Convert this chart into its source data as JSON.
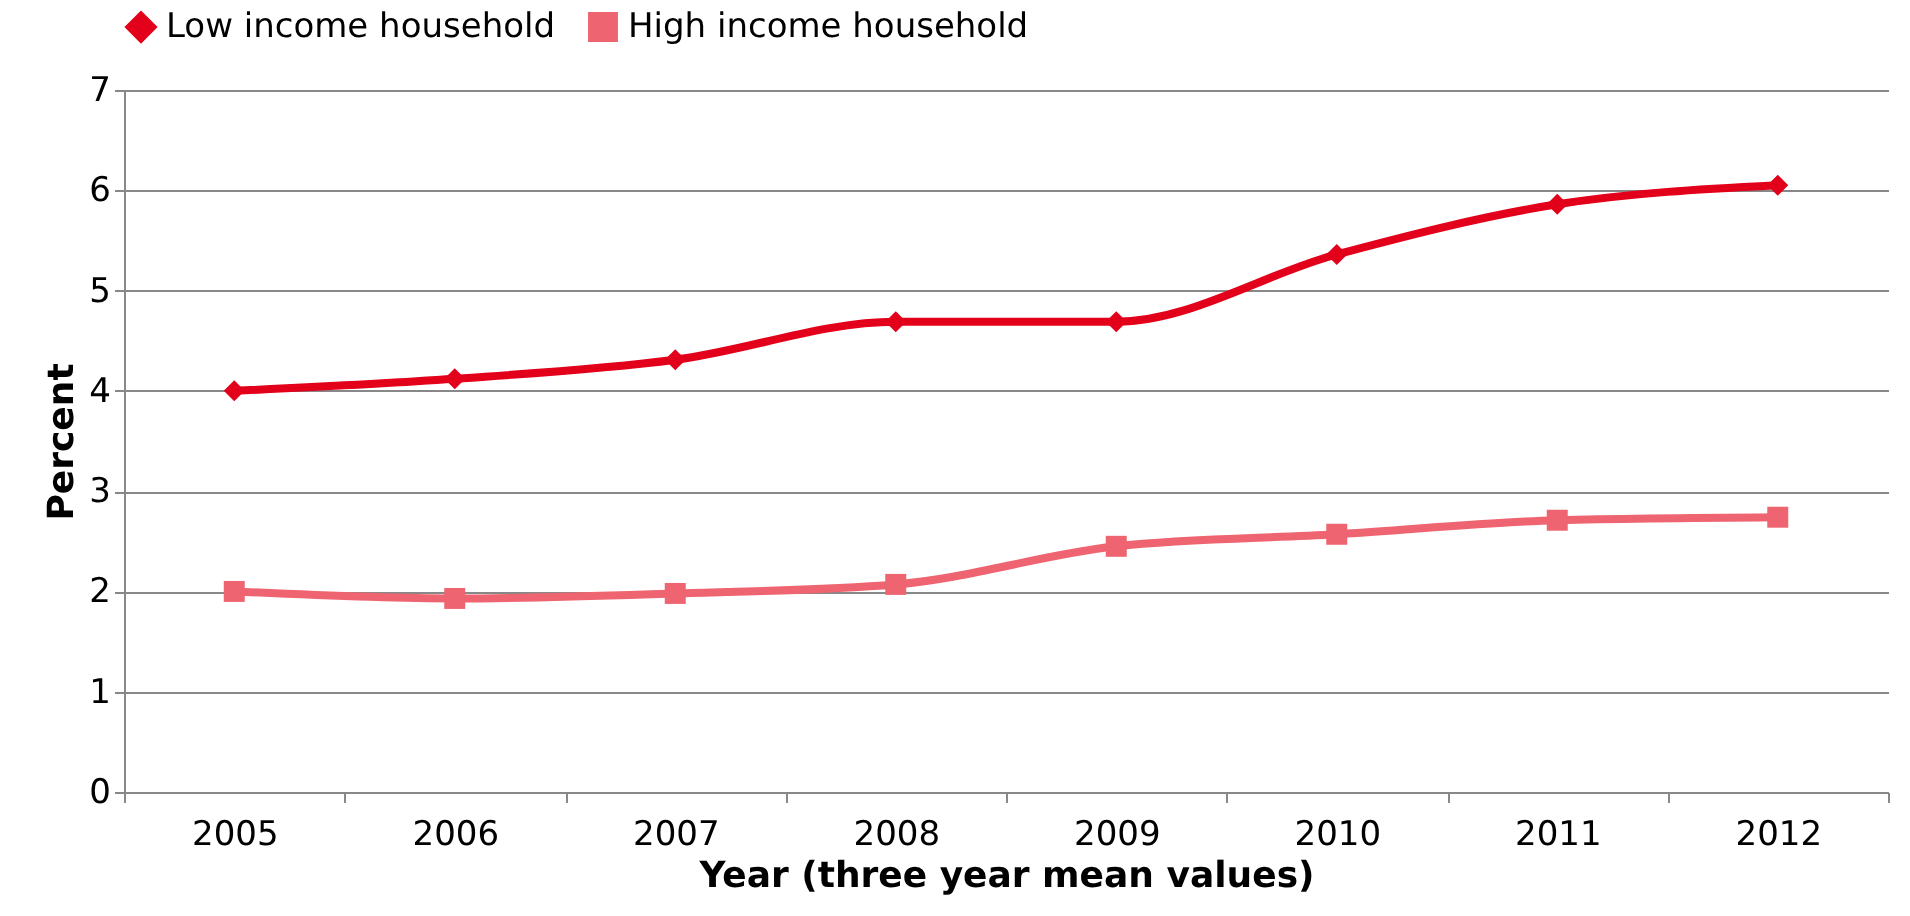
{
  "chart_data": {
    "type": "line",
    "xlabel": "Year (three year mean values)",
    "ylabel": "Percent",
    "categories": [
      "2005",
      "2006",
      "2007",
      "2008",
      "2009",
      "2010",
      "2011",
      "2012"
    ],
    "series": [
      {
        "name": "Low income household",
        "color": "#e2001a",
        "marker": "diamond",
        "values": [
          4.0,
          4.12,
          4.31,
          4.69,
          4.69,
          5.36,
          5.86,
          6.05
        ]
      },
      {
        "name": "High income household",
        "color": "#ee6470",
        "marker": "square",
        "values": [
          2.0,
          1.93,
          1.98,
          2.07,
          2.45,
          2.57,
          2.71,
          2.74
        ]
      }
    ],
    "ylim": [
      0,
      7
    ],
    "yticks": [
      0,
      1,
      2,
      3,
      4,
      5,
      6,
      7
    ],
    "grid": "y",
    "legend": "top",
    "line_style": "solid"
  }
}
